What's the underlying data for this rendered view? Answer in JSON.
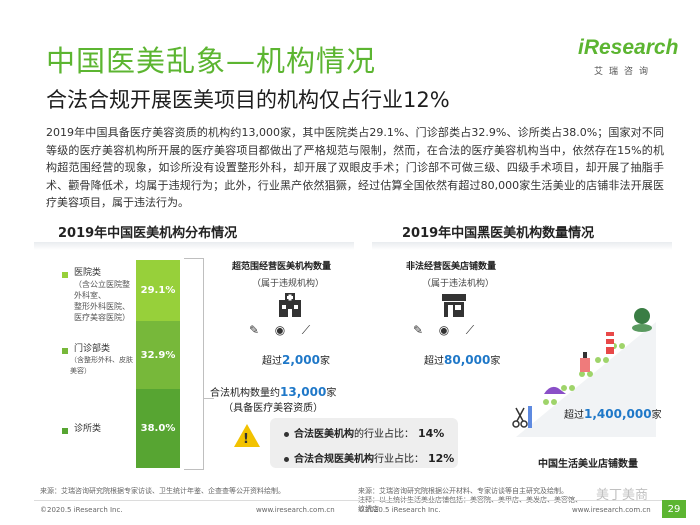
{
  "title": "中国医美乱象—机构情况",
  "subtitle": "合法合规开展医美项目的机构仅占行业12%",
  "logo": {
    "main": "iResearch",
    "sub": "艾瑞咨询"
  },
  "body_text": "2019年中国具备医疗美容资质的机构约13,000家，其中医院类占29.1%、门诊部类占32.9%、诊所类占38.0%；国家对不同等级的医疗美容机构所开展的医疗美容项目都做出了严格规范与限制，然而，在合法的医疗美容机构当中，依然存在15%的机构超范围经营的现象，如诊所没有设置整形外科，却开展了双眼皮手术；门诊部不可做三级、四级手术项目，却开展了抽脂手术、颧骨降低术，均属于违规行为；此外，行业黑产依然猖獗，经过估算全国依然有超过80,000家生活美业的店铺非法开展医疗美容项目，属于违法行为。",
  "left_section": {
    "title": "2019年中国医美机构分布情况"
  },
  "right_section": {
    "title": "2019年中国黑医美机构数量情况"
  },
  "chart_data": {
    "type": "bar",
    "stacked": true,
    "title": "2019年中国医美机构分布情况",
    "unit": "%",
    "categories": [
      "医院类",
      "门诊部类",
      "诊所类"
    ],
    "descriptions": [
      "（含公立医院整外科室、整形外科医院、医疗美容医院）",
      "（含整形外科、皮肤美容）",
      ""
    ],
    "values": [
      29.1,
      32.9,
      38.0
    ],
    "value_labels": [
      "29.1%",
      "32.9%",
      "38.0%"
    ],
    "colors": [
      "#97d03a",
      "#77b83a",
      "#57a532"
    ]
  },
  "bar_labels": [
    {
      "head": "医院类",
      "desc_lines": [
        "（含公立医院整外科室、",
        "整形外科医院、",
        "医疗美容医院）"
      ]
    },
    {
      "head": "门诊部类",
      "desc_lines": [
        "（含整形外科、皮肤美容）"
      ]
    },
    {
      "head": "诊所类",
      "desc_lines": []
    }
  ],
  "over_scope": {
    "title": "超范围经营医美机构数量",
    "note": "（属于违规机构）",
    "prefix": "超过",
    "number": "2,000",
    "suffix": "家"
  },
  "illegal": {
    "title": "非法经营医美店铺数量",
    "note": "（属于违法机构）",
    "prefix": "超过",
    "number": "80,000",
    "suffix": "家"
  },
  "legal": {
    "prefix": "合法机构数量约",
    "number": "13,000",
    "suffix": "家",
    "note": "（具备医疗美容资质）"
  },
  "ratios": [
    {
      "label": "合法医美机构",
      "tail": "的行业占比：",
      "value": "14%"
    },
    {
      "label": "合法合规医美机构",
      "tail": "行业占比：",
      "value": "12%"
    }
  ],
  "shops": {
    "prefix": "超过",
    "number": "1,400,000",
    "suffix": "家",
    "label": "中国生活美业店铺数量"
  },
  "footer": {
    "left_source": "来源：艾瑞咨询研究院根据专家访谈、卫生统计年鉴、企查查等公开资料绘制。",
    "right_notes": [
      "注释：以上统计生活美业店铺包括：美容院、美甲店、美发店、美容馆、纹绣店",
      "来源：艾瑞咨询研究院根据公开材料、专家访谈等自主研究及绘制。"
    ],
    "copyright_left": "©2020.5 iResearch Inc.",
    "site_left": "www.iresearch.com.cn",
    "copyright_right": "©2020.5 iResearch Inc.",
    "site_right": "www.iresearch.com.cn",
    "page": "29",
    "watermark": "美丁美商"
  }
}
